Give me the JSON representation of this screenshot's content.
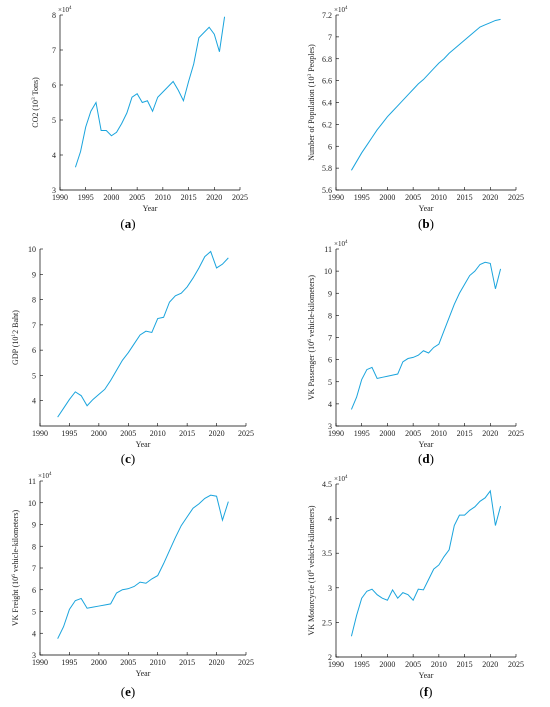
{
  "chart_data": [
    {
      "id": "a",
      "type": "line",
      "caption_letter": "a",
      "xlabel": "Year",
      "ylabel_main": "CO2 (10",
      "ylabel_sup": "3",
      "ylabel_tail": " Tons)",
      "multiplier_base": "×10",
      "multiplier_exp": "4",
      "xlim": [
        1990,
        2025
      ],
      "ylim": [
        3,
        8
      ],
      "xticks": [
        1990,
        1995,
        2000,
        2005,
        2010,
        2015,
        2020,
        2025
      ],
      "yticks": [
        3,
        4,
        5,
        6,
        7,
        8
      ],
      "x": [
        1993,
        1994,
        1995,
        1996,
        1997,
        1998,
        1999,
        2000,
        2001,
        2002,
        2003,
        2004,
        2005,
        2006,
        2007,
        2008,
        2009,
        2010,
        2011,
        2012,
        2013,
        2014,
        2015,
        2016,
        2017,
        2018,
        2019,
        2020,
        2021,
        2022
      ],
      "y": [
        3.65,
        4.1,
        4.8,
        5.25,
        5.5,
        4.7,
        4.7,
        4.55,
        4.65,
        4.9,
        5.2,
        5.65,
        5.75,
        5.5,
        5.55,
        5.25,
        5.65,
        5.8,
        5.95,
        6.1,
        5.85,
        5.55,
        6.1,
        6.6,
        7.35,
        7.5,
        7.65,
        7.45,
        6.95,
        7.95
      ],
      "series_color": "#1aa4dd"
    },
    {
      "id": "b",
      "type": "line",
      "caption_letter": "b",
      "xlabel": "Year",
      "ylabel_main": "Number of Population (10",
      "ylabel_sup": "3",
      "ylabel_tail": " Peoples)",
      "multiplier_base": "×10",
      "multiplier_exp": "4",
      "xlim": [
        1990,
        2025
      ],
      "ylim": [
        5.6,
        7.2
      ],
      "xticks": [
        1990,
        1995,
        2000,
        2005,
        2010,
        2015,
        2020,
        2025
      ],
      "yticks": [
        5.6,
        5.8,
        6,
        6.2,
        6.4,
        6.6,
        6.8,
        7,
        7.2
      ],
      "ytick_labels": [
        "5.6",
        "5.8",
        "6",
        "6.2",
        "6.4",
        "6.6",
        "6.8",
        "7",
        "7.2"
      ],
      "x": [
        1993,
        1994,
        1995,
        1996,
        1997,
        1998,
        1999,
        2000,
        2001,
        2002,
        2003,
        2004,
        2005,
        2006,
        2007,
        2008,
        2009,
        2010,
        2011,
        2012,
        2013,
        2014,
        2015,
        2016,
        2017,
        2018,
        2019,
        2020,
        2021,
        2022
      ],
      "y": [
        5.78,
        5.86,
        5.94,
        6.01,
        6.08,
        6.15,
        6.21,
        6.27,
        6.32,
        6.37,
        6.42,
        6.47,
        6.52,
        6.57,
        6.61,
        6.66,
        6.71,
        6.76,
        6.8,
        6.85,
        6.89,
        6.93,
        6.97,
        7.01,
        7.05,
        7.09,
        7.11,
        7.13,
        7.15,
        7.16
      ],
      "series_color": "#1aa4dd"
    },
    {
      "id": "c",
      "type": "line",
      "caption_letter": "c",
      "xlabel": "Year",
      "ylabel_main": "GDP (10",
      "ylabel_sup": "1",
      "ylabel_tail": "2 Baht)",
      "multiplier_base": "",
      "multiplier_exp": "",
      "xlim": [
        1990,
        2025
      ],
      "ylim": [
        3,
        10
      ],
      "xticks": [
        1990,
        1995,
        2000,
        2005,
        2010,
        2015,
        2020,
        2025
      ],
      "yticks": [
        4,
        5,
        6,
        7,
        8,
        9,
        10
      ],
      "x": [
        1993,
        1994,
        1995,
        1996,
        1997,
        1998,
        1999,
        2000,
        2001,
        2002,
        2003,
        2004,
        2005,
        2006,
        2007,
        2008,
        2009,
        2010,
        2011,
        2012,
        2013,
        2014,
        2015,
        2016,
        2017,
        2018,
        2019,
        2020,
        2021,
        2022
      ],
      "y": [
        3.35,
        3.7,
        4.05,
        4.35,
        4.2,
        3.8,
        4.05,
        4.25,
        4.45,
        4.8,
        5.2,
        5.6,
        5.9,
        6.25,
        6.6,
        6.75,
        6.7,
        7.25,
        7.3,
        7.9,
        8.15,
        8.25,
        8.5,
        8.85,
        9.25,
        9.7,
        9.9,
        9.25,
        9.4,
        9.65
      ],
      "series_color": "#1aa4dd"
    },
    {
      "id": "d",
      "type": "line",
      "caption_letter": "d",
      "xlabel": "Year",
      "ylabel_main": "VK Passenger (10",
      "ylabel_sup": "6",
      "ylabel_tail": " vehicle-kilometers)",
      "multiplier_base": "×10",
      "multiplier_exp": "4",
      "xlim": [
        1990,
        2025
      ],
      "ylim": [
        3,
        11
      ],
      "xticks": [
        1990,
        1995,
        2000,
        2005,
        2010,
        2015,
        2020,
        2025
      ],
      "yticks": [
        3,
        4,
        5,
        6,
        7,
        8,
        9,
        10,
        11
      ],
      "x": [
        1993,
        1994,
        1995,
        1996,
        1997,
        1998,
        1999,
        2000,
        2001,
        2002,
        2003,
        2004,
        2005,
        2006,
        2007,
        2008,
        2009,
        2010,
        2011,
        2012,
        2013,
        2014,
        2015,
        2016,
        2017,
        2018,
        2019,
        2020,
        2021,
        2022
      ],
      "y": [
        3.75,
        4.3,
        5.1,
        5.55,
        5.65,
        5.15,
        5.2,
        5.25,
        5.3,
        5.35,
        5.9,
        6.05,
        6.1,
        6.2,
        6.4,
        6.3,
        6.55,
        6.7,
        7.3,
        7.9,
        8.5,
        9.0,
        9.4,
        9.8,
        10.0,
        10.3,
        10.4,
        10.35,
        9.2,
        10.1
      ],
      "series_color": "#1aa4dd"
    },
    {
      "id": "e",
      "type": "line",
      "caption_letter": "e",
      "xlabel": "Year",
      "ylabel_main": "VK Freight (10",
      "ylabel_sup": "6",
      "ylabel_tail": " vehicle-kilometers)",
      "multiplier_base": "×10",
      "multiplier_exp": "4",
      "xlim": [
        1990,
        2025
      ],
      "ylim": [
        3,
        11
      ],
      "xticks": [
        1990,
        1995,
        2000,
        2005,
        2010,
        2015,
        2020,
        2025
      ],
      "yticks": [
        3,
        4,
        5,
        6,
        7,
        8,
        9,
        10,
        11
      ],
      "x": [
        1993,
        1994,
        1995,
        1996,
        1997,
        1998,
        1999,
        2000,
        2001,
        2002,
        2003,
        2004,
        2005,
        2006,
        2007,
        2008,
        2009,
        2010,
        2011,
        2012,
        2013,
        2014,
        2015,
        2016,
        2017,
        2018,
        2019,
        2020,
        2021,
        2022
      ],
      "y": [
        3.75,
        4.3,
        5.1,
        5.5,
        5.6,
        5.15,
        5.2,
        5.25,
        5.3,
        5.35,
        5.85,
        6.0,
        6.05,
        6.15,
        6.35,
        6.3,
        6.5,
        6.65,
        7.2,
        7.8,
        8.4,
        8.95,
        9.35,
        9.75,
        9.95,
        10.2,
        10.35,
        10.3,
        9.2,
        10.05
      ],
      "series_color": "#1aa4dd"
    },
    {
      "id": "f",
      "type": "line",
      "caption_letter": "f",
      "xlabel": "Year",
      "ylabel_main": "VK Motorcycle (10",
      "ylabel_sup": "6",
      "ylabel_tail": " vehicle-kilometers)",
      "multiplier_base": "×10",
      "multiplier_exp": "4",
      "xlim": [
        1990,
        2025
      ],
      "ylim": [
        2,
        4.5
      ],
      "xticks": [
        1990,
        1995,
        2000,
        2005,
        2010,
        2015,
        2020,
        2025
      ],
      "yticks": [
        2,
        2.5,
        3,
        3.5,
        4,
        4.5
      ],
      "ytick_labels": [
        "2",
        "2.5",
        "3",
        "3.5",
        "4",
        "4.5"
      ],
      "x": [
        1993,
        1994,
        1995,
        1996,
        1997,
        1998,
        1999,
        2000,
        2001,
        2002,
        2003,
        2004,
        2005,
        2006,
        2007,
        2008,
        2009,
        2010,
        2011,
        2012,
        2013,
        2014,
        2015,
        2016,
        2017,
        2018,
        2019,
        2020,
        2021,
        2022
      ],
      "y": [
        2.3,
        2.6,
        2.85,
        2.95,
        2.98,
        2.9,
        2.85,
        2.82,
        2.97,
        2.85,
        2.93,
        2.9,
        2.82,
        2.98,
        2.97,
        3.12,
        3.27,
        3.33,
        3.45,
        3.55,
        3.9,
        4.05,
        4.05,
        4.12,
        4.17,
        4.25,
        4.3,
        4.4,
        3.9,
        4.18
      ],
      "series_color": "#1aa4dd"
    }
  ]
}
